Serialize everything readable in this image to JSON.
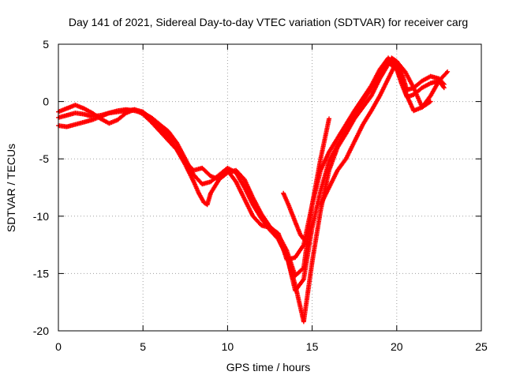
{
  "chart_data": {
    "type": "scatter",
    "title": "Day 141 of 2021, Sidereal Day-to-day VTEC variation (SDTVAR) for receiver carg",
    "xlabel": "GPS time / hours",
    "ylabel": "SDTVAR / TECUs",
    "xlim": [
      0,
      25
    ],
    "ylim": [
      -20,
      5
    ],
    "xticks": [
      0,
      5,
      10,
      15,
      20,
      25
    ],
    "yticks": [
      -20,
      -15,
      -10,
      -5,
      0,
      5
    ],
    "grid": true,
    "marker": "+",
    "color": "#ff0000",
    "series": [
      {
        "x": [
          0.0,
          0.5,
          1.0,
          1.5,
          2.0,
          2.5,
          3.0,
          3.5,
          4.0,
          4.5,
          5.0,
          5.5,
          6.0,
          6.5,
          7.0,
          7.5,
          8.0,
          8.3,
          8.6,
          8.8,
          9.0,
          9.5,
          10.0,
          10.5,
          11.0,
          11.5,
          12.0,
          12.5,
          13.0,
          13.5,
          14.0,
          14.5,
          15.0,
          15.5,
          16.0,
          16.5,
          17.0,
          17.5,
          18.0,
          18.5,
          19.0,
          19.4,
          19.7,
          20.0,
          20.3,
          20.6,
          21.0,
          21.5,
          22.0,
          22.5,
          22.8
        ],
        "y": [
          -2.1,
          -2.2,
          -2.0,
          -1.8,
          -1.6,
          -1.3,
          -1.0,
          -0.9,
          -0.8,
          -0.7,
          -0.9,
          -1.5,
          -2.2,
          -3.0,
          -4.2,
          -5.5,
          -7.0,
          -8.0,
          -8.8,
          -9.0,
          -8.0,
          -6.8,
          -6.0,
          -7.0,
          -8.5,
          -10.0,
          -10.8,
          -11.0,
          -12.0,
          -13.5,
          -16.0,
          -19.2,
          -14.0,
          -9.5,
          -6.0,
          -4.0,
          -2.8,
          -1.5,
          -0.5,
          0.5,
          2.0,
          3.0,
          3.8,
          3.5,
          2.5,
          1.0,
          1.2,
          1.8,
          2.2,
          2.0,
          1.5
        ]
      },
      {
        "x": [
          0.0,
          0.5,
          1.0,
          1.5,
          2.0,
          2.5,
          3.0,
          3.5,
          4.0,
          4.5,
          5.0,
          5.5,
          6.0,
          6.5,
          7.0,
          7.5,
          8.0,
          8.5,
          9.0,
          9.5,
          10.0,
          10.5,
          11.0,
          11.5,
          12.0,
          12.5,
          13.0,
          13.5,
          14.0,
          14.5,
          15.0,
          15.5,
          16.0,
          16.5,
          17.0,
          17.5,
          18.0,
          18.5,
          19.0,
          19.5,
          20.0,
          20.3,
          20.6,
          21.0,
          21.5,
          22.0,
          22.5,
          22.8
        ],
        "y": [
          -1.4,
          -1.2,
          -1.0,
          -1.1,
          -1.3,
          -1.2,
          -1.0,
          -0.8,
          -0.7,
          -0.8,
          -1.0,
          -1.4,
          -2.0,
          -2.6,
          -3.6,
          -5.0,
          -6.4,
          -7.2,
          -7.0,
          -6.4,
          -5.8,
          -6.2,
          -7.5,
          -9.0,
          -10.2,
          -11.2,
          -12.0,
          -13.4,
          -16.5,
          -15.5,
          -11.0,
          -7.8,
          -5.2,
          -3.8,
          -2.5,
          -1.2,
          0.0,
          1.2,
          2.4,
          3.4,
          2.8,
          1.5,
          0.4,
          0.6,
          1.2,
          1.6,
          1.8,
          1.2
        ]
      },
      {
        "x": [
          0.0,
          0.5,
          1.0,
          1.5,
          2.0,
          2.5,
          3.0,
          3.5,
          4.0,
          4.5,
          5.0,
          5.5,
          6.0,
          6.5,
          7.0,
          7.5,
          8.0,
          8.5,
          9.0,
          9.5,
          10.0,
          10.5,
          11.0,
          11.5,
          12.0,
          12.5,
          13.0,
          13.5,
          14.0,
          14.5,
          15.0,
          15.5,
          16.0,
          16.5,
          17.0,
          17.5,
          18.0,
          18.5,
          19.0,
          19.5,
          20.0,
          20.3,
          20.6,
          21.0,
          21.5,
          22.0
        ],
        "y": [
          -0.9,
          -0.6,
          -0.3,
          -0.6,
          -1.0,
          -1.5,
          -1.9,
          -1.6,
          -1.0,
          -0.7,
          -1.1,
          -1.8,
          -2.6,
          -3.4,
          -4.2,
          -5.3,
          -6.0,
          -5.8,
          -6.5,
          -6.8,
          -6.2,
          -6.0,
          -6.8,
          -8.4,
          -9.8,
          -10.9,
          -11.6,
          -13.0,
          -15.2,
          -14.5,
          -9.0,
          -6.0,
          -4.4,
          -3.2,
          -2.0,
          -0.8,
          0.3,
          1.4,
          2.8,
          3.8,
          3.0,
          1.8,
          0.5,
          -0.8,
          -0.5,
          0.0
        ]
      },
      {
        "x": [
          12.5,
          13.0,
          13.5,
          14.0,
          14.5,
          15.0,
          15.5,
          16.0
        ],
        "y": [
          -11.0,
          -11.5,
          -13.8,
          -13.6,
          -12.5,
          -9.0,
          -5.0,
          -1.5
        ]
      },
      {
        "x": [
          13.3,
          13.6,
          14.0,
          14.3,
          14.5
        ],
        "y": [
          -8.0,
          -9.0,
          -10.5,
          -11.6,
          -12.0
        ]
      },
      {
        "x": [
          15.5,
          16.0,
          16.5,
          17.0,
          17.5,
          18.0,
          18.5,
          19.0,
          19.5,
          20.0,
          20.5,
          21.0,
          21.5,
          22.0,
          22.5,
          23.0
        ],
        "y": [
          -9.0,
          -7.5,
          -6.0,
          -5.0,
          -3.5,
          -2.0,
          -0.8,
          0.5,
          2.0,
          3.5,
          2.6,
          1.2,
          -0.5,
          0.5,
          1.8,
          2.6
        ]
      }
    ]
  }
}
